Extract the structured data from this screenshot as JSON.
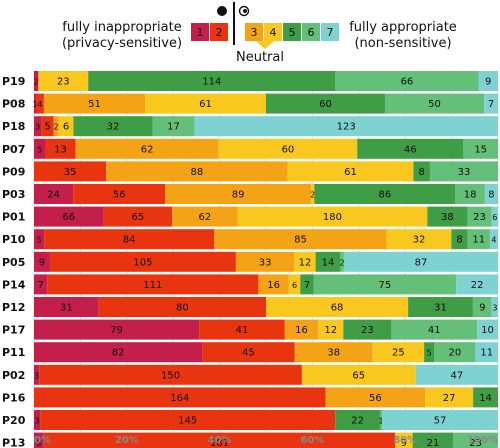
{
  "header": {
    "left_label_line1": "fully inappropriate",
    "left_label_line2": "(privacy-sensitive)",
    "right_label_line1": "fully appropriate",
    "right_label_line2": "(non-sensitive)",
    "neutral_label": "Neutral"
  },
  "colors": {
    "1": "#c41e4a",
    "2": "#e8350f",
    "3": "#f5a316",
    "4": "#f8c81e",
    "5": "#3f9e45",
    "6": "#64bf78",
    "7": "#7ed2d2"
  },
  "chart_data": {
    "type": "bar",
    "orientation": "horizontal",
    "stacked": "percent",
    "levels": [
      "1",
      "2",
      "3",
      "4",
      "5",
      "6",
      "7"
    ],
    "categories": [
      "P19",
      "P08",
      "P18",
      "P07",
      "P09",
      "P03",
      "P01",
      "P10",
      "P05",
      "P14",
      "P12",
      "P17",
      "P11",
      "P02",
      "P16",
      "P20",
      "P13"
    ],
    "counts": [
      [
        2,
        0,
        0,
        23,
        114,
        66,
        9
      ],
      [
        1,
        4,
        51,
        61,
        60,
        50,
        7
      ],
      [
        3,
        5,
        2,
        6,
        32,
        17,
        123
      ],
      [
        5,
        13,
        62,
        60,
        46,
        15,
        0
      ],
      [
        0,
        35,
        88,
        61,
        8,
        33,
        0
      ],
      [
        24,
        56,
        89,
        2,
        86,
        18,
        8
      ],
      [
        66,
        65,
        62,
        180,
        38,
        23,
        6
      ],
      [
        5,
        84,
        85,
        32,
        8,
        11,
        4
      ],
      [
        9,
        105,
        33,
        12,
        14,
        2,
        87
      ],
      [
        7,
        111,
        16,
        6,
        7,
        75,
        22
      ],
      [
        31,
        80,
        0,
        68,
        31,
        9,
        3
      ],
      [
        79,
        41,
        16,
        12,
        23,
        41,
        10
      ],
      [
        82,
        45,
        38,
        25,
        5,
        20,
        11
      ],
      [
        3,
        150,
        0,
        65,
        0,
        0,
        47
      ],
      [
        0,
        164,
        56,
        27,
        14,
        0,
        0
      ],
      [
        3,
        145,
        0,
        0,
        22,
        1,
        57
      ],
      [
        5,
        181,
        0,
        9,
        21,
        23,
        0
      ]
    ],
    "x_ticks": [
      "0%",
      "20%",
      "40%",
      "60%",
      "80%",
      "100%"
    ],
    "xlim": [
      0,
      100
    ],
    "grid": true
  }
}
